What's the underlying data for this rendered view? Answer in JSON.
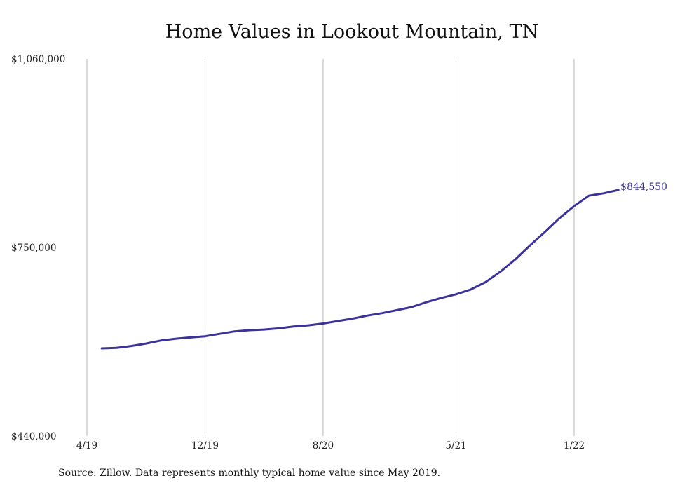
{
  "chart_data": {
    "type": "line",
    "title": "Home Values in Lookout Mountain, TN",
    "source": "Source: Zillow. Data represents monthly typical home value since May 2019.",
    "xlabel": "",
    "ylabel": "",
    "ylim": [
      440000,
      1060000
    ],
    "y_ticks": [
      440000,
      750000,
      1060000
    ],
    "y_tick_labels": [
      "$440,000",
      "$750,000",
      "$1,060,000"
    ],
    "x_tick_labels": [
      "4/19",
      "12/19",
      "8/20",
      "5/21",
      "1/22"
    ],
    "x_tick_months": [
      "2019-04",
      "2019-12",
      "2020-08",
      "2021-05",
      "2022-01"
    ],
    "grid": "vertical",
    "line_color": "#3b339a",
    "end_label": "$844,550",
    "series": [
      {
        "x": [
          "2019-05",
          "2019-06",
          "2019-07",
          "2019-08",
          "2019-09",
          "2019-10",
          "2019-11",
          "2019-12",
          "2020-01",
          "2020-02",
          "2020-03",
          "2020-04",
          "2020-05",
          "2020-06",
          "2020-07",
          "2020-08",
          "2020-09",
          "2020-10",
          "2020-11",
          "2020-12",
          "2021-01",
          "2021-02",
          "2021-03",
          "2021-04",
          "2021-05",
          "2021-06",
          "2021-07",
          "2021-08",
          "2021-09",
          "2021-10",
          "2021-11",
          "2021-12",
          "2022-01",
          "2022-02",
          "2022-03",
          "2022-04"
        ],
        "values": [
          584000,
          585000,
          588000,
          592000,
          597000,
          600000,
          602000,
          604000,
          608000,
          612000,
          614000,
          615000,
          617000,
          620000,
          622000,
          625000,
          629000,
          633000,
          638000,
          642000,
          647000,
          652000,
          660000,
          667000,
          673000,
          681000,
          693000,
          710000,
          730000,
          753000,
          775000,
          798000,
          818000,
          835000,
          839000,
          844550
        ]
      }
    ]
  }
}
